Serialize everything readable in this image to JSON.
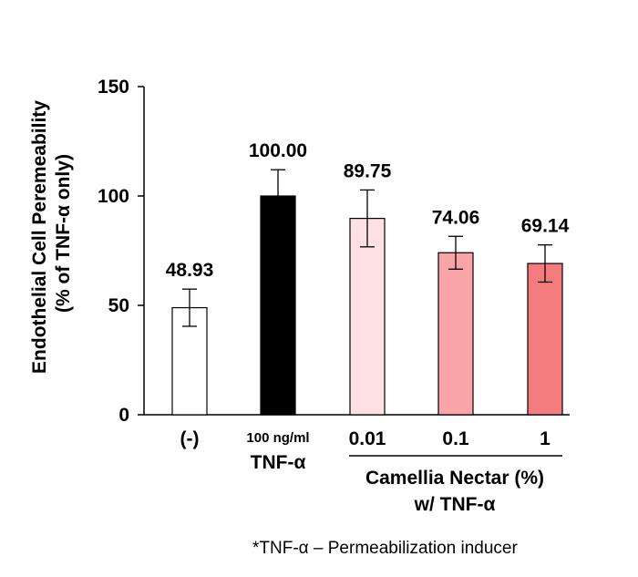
{
  "chart_data": {
    "type": "bar",
    "categories": [
      "(-)",
      "100 ng/ml",
      "0.01",
      "0.1",
      "1"
    ],
    "category_sublabels": [
      "",
      "TNF-α",
      "",
      "",
      ""
    ],
    "values": [
      48.93,
      100.0,
      89.75,
      74.06,
      69.14
    ],
    "value_labels": [
      "48.93",
      "100.00",
      "89.75",
      "74.06",
      "69.14"
    ],
    "error_bars": [
      8.5,
      12,
      13,
      7.5,
      8.5
    ],
    "bar_colors": [
      "#ffffff",
      "#000000",
      "#fde0e1",
      "#f9a4a6",
      "#f47c7e"
    ],
    "bar_edge_color": "#000000",
    "ylim": [
      0,
      150
    ],
    "yticks": [
      "0",
      "50",
      "100",
      "150"
    ],
    "ylabel_line1": "Endothelial Cell Peremeability",
    "ylabel_line2": "(% of TNF-α only)",
    "group_label_line1": "Camellia Nectar (%)",
    "group_label_line2": "w/ TNF-α",
    "grid": false
  },
  "footnote": "*TNF-α – Permeabilization inducer"
}
